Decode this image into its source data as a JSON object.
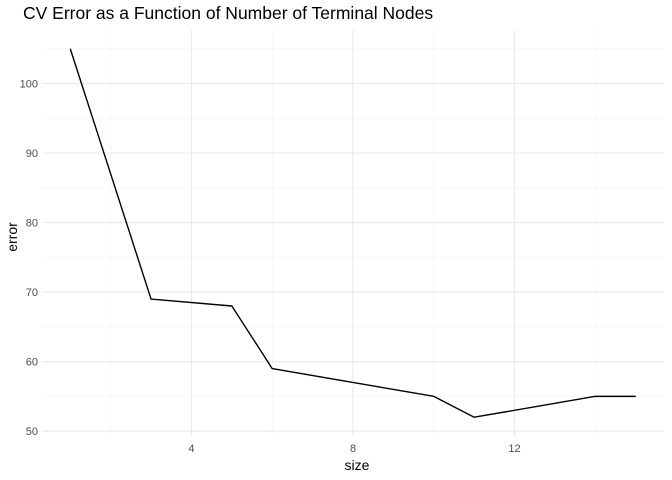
{
  "chart_data": {
    "type": "line",
    "title": "CV Error as a Function of Number of Terminal Nodes",
    "xlabel": "size",
    "ylabel": "error",
    "x": [
      1,
      3,
      5,
      6,
      10,
      11,
      14,
      15
    ],
    "series": [
      {
        "values": [
          105,
          69,
          68,
          59,
          55,
          52,
          55,
          55
        ]
      }
    ],
    "xlim": [
      0.3,
      15.7
    ],
    "ylim": [
      49.3,
      107.7
    ],
    "x_ticks": [
      4,
      8,
      12
    ],
    "y_ticks": [
      50,
      60,
      70,
      80,
      90,
      100
    ],
    "x_minor_ticks": [
      2,
      6,
      10,
      14
    ],
    "y_minor_ticks": [
      55,
      65,
      75,
      85,
      95,
      105
    ],
    "grid": true,
    "legend": "none",
    "colors": {
      "line": "#000000",
      "grid_major": "#ebebeb",
      "grid_minor": "#f5f5f5",
      "background": "#ffffff"
    }
  }
}
